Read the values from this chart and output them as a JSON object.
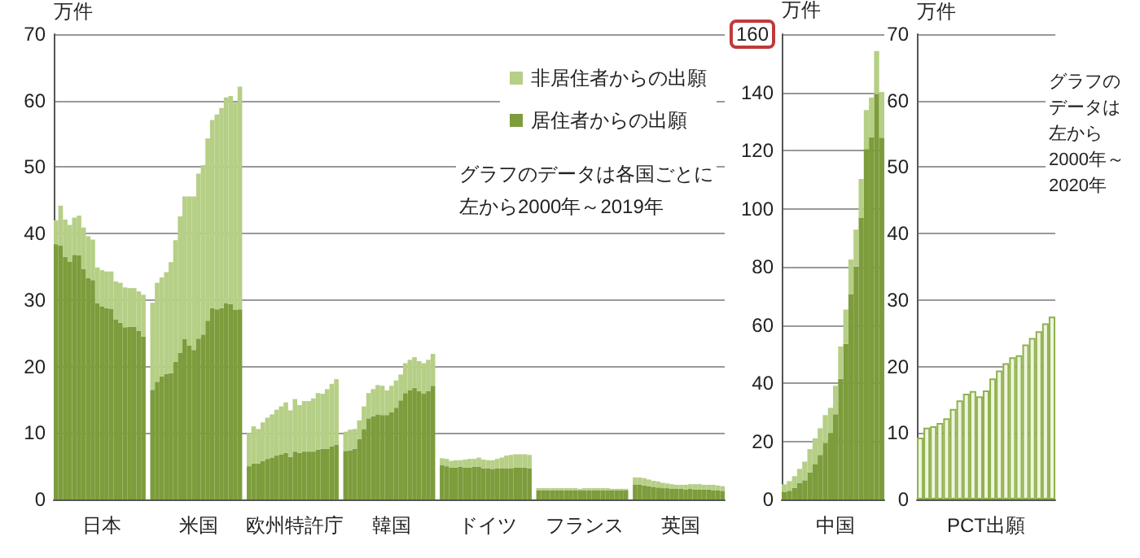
{
  "chart_data": [
    {
      "type": "bar",
      "stacked": true,
      "ylabel": "万件",
      "grid": "y",
      "legend": "top right",
      "ylim": [
        0,
        70
      ],
      "yticks": [
        0,
        10,
        20,
        30,
        40,
        50,
        60,
        70
      ],
      "annotations": [
        "グラフのデータは各国ごとに",
        "左から2000年～2019年"
      ],
      "categories": [
        null,
        null,
        null,
        null,
        null,
        null,
        null,
        null,
        null,
        null,
        "日本",
        null,
        null,
        null,
        null,
        null,
        null,
        null,
        null,
        null,
        null,
        null,
        null,
        null,
        null,
        null,
        null,
        null,
        null,
        null,
        null,
        "米国",
        null,
        null,
        null,
        null,
        null,
        null,
        null,
        null,
        null,
        null,
        null,
        null,
        null,
        null,
        null,
        null,
        null,
        null,
        null,
        null,
        "欧州特許庁",
        null,
        null,
        null,
        null,
        null,
        null,
        null,
        null,
        null,
        null,
        null,
        null,
        null,
        null,
        null,
        null,
        null,
        null,
        null,
        null,
        "韓国",
        null,
        null,
        null,
        null,
        null,
        null,
        null,
        null,
        null,
        null,
        null,
        null,
        null,
        null,
        null,
        null,
        null,
        null,
        null,
        null,
        "ドイツ",
        null,
        null,
        null,
        null,
        null,
        null,
        null,
        null,
        null,
        null,
        null,
        null,
        null,
        null,
        null,
        null,
        null,
        null,
        null,
        null,
        "フランス",
        null,
        null,
        null,
        null,
        null,
        null,
        null,
        null,
        null,
        null,
        null,
        null,
        null,
        null,
        null,
        null,
        null,
        null,
        null,
        null,
        "英国",
        null,
        null,
        null,
        null,
        null,
        null,
        null,
        null,
        null
      ],
      "series": [
        {
          "name": "居住者からの出願",
          "color": "#7d9c3c",
          "values": [
            38.4,
            38.2,
            36.5,
            35.8,
            36.8,
            36.7,
            34.7,
            33.3,
            33.0,
            29.5,
            29.0,
            28.8,
            28.7,
            27.1,
            26.6,
            25.9,
            26.0,
            26.0,
            25.4,
            24.5,
            null,
            16.5,
            17.7,
            18.5,
            18.9,
            19.0,
            20.7,
            22.1,
            24.1,
            23.2,
            22.5,
            24.2,
            24.8,
            26.9,
            28.8,
            28.6,
            28.8,
            29.5,
            29.4,
            28.5,
            28.6,
            null,
            5.0,
            5.4,
            5.4,
            5.8,
            6.1,
            6.3,
            6.6,
            6.8,
            7.0,
            6.4,
            7.2,
            7.0,
            7.2,
            7.2,
            7.2,
            7.5,
            7.6,
            7.6,
            8.0,
            8.2,
            null,
            7.3,
            7.4,
            7.6,
            9.1,
            10.6,
            12.2,
            12.5,
            12.8,
            12.7,
            12.7,
            13.1,
            13.8,
            14.9,
            16.0,
            16.4,
            16.8,
            16.3,
            15.9,
            16.3,
            17.1,
            null,
            5.2,
            5.0,
            4.8,
            4.8,
            4.9,
            4.8,
            4.8,
            4.9,
            4.9,
            4.7,
            4.7,
            4.6,
            4.7,
            4.7,
            4.7,
            4.7,
            4.8,
            4.8,
            4.8,
            4.7,
            null,
            1.4,
            1.4,
            1.4,
            1.4,
            1.4,
            1.4,
            1.4,
            1.4,
            1.4,
            1.4,
            1.4,
            1.4,
            1.4,
            1.4,
            1.4,
            1.4,
            1.4,
            1.4,
            1.4,
            1.4,
            null,
            2.2,
            2.2,
            2.1,
            2.0,
            1.9,
            1.8,
            1.7,
            1.7,
            1.6,
            1.6,
            1.6,
            1.5,
            1.6,
            1.5,
            1.5,
            1.5,
            1.5,
            1.4,
            1.4,
            1.3
          ]
        },
        {
          "name": "非居住者からの出願",
          "color": "#b6cf86",
          "values": [
            3.6,
            6.0,
            5.6,
            5.5,
            5.6,
            6.0,
            6.2,
            6.3,
            6.1,
            5.4,
            5.5,
            5.5,
            5.6,
            5.7,
            6.0,
            6.0,
            5.8,
            5.8,
            5.9,
            6.3,
            null,
            13.1,
            14.9,
            14.9,
            15.3,
            16.7,
            18.3,
            20.5,
            21.5,
            22.4,
            23.1,
            24.8,
            25.5,
            27.4,
            28.3,
            29.3,
            30.1,
            31.0,
            31.3,
            31.2,
            33.5,
            null,
            5.0,
            5.6,
            5.2,
            5.8,
            6.2,
            6.5,
            6.9,
            7.2,
            7.6,
            7.0,
            7.9,
            7.2,
            7.6,
            7.6,
            8.0,
            8.5,
            8.3,
            9.0,
            9.4,
            9.9,
            null,
            2.9,
            3.1,
            3.0,
            2.8,
            3.4,
            3.8,
            4.1,
            4.4,
            4.4,
            3.7,
            4.0,
            4.1,
            3.9,
            4.5,
            4.6,
            4.6,
            4.5,
            4.6,
            4.7,
            4.8,
            null,
            1.0,
            1.1,
            1.0,
            1.1,
            1.0,
            1.2,
            1.3,
            1.2,
            1.4,
            1.3,
            1.2,
            1.3,
            1.4,
            1.6,
            1.9,
            2.0,
            2.0,
            2.0,
            2.0,
            2.0,
            null,
            0.3,
            0.3,
            0.3,
            0.3,
            0.3,
            0.3,
            0.3,
            0.3,
            0.3,
            0.2,
            0.3,
            0.3,
            0.3,
            0.3,
            0.3,
            0.3,
            0.2,
            0.2,
            0.2,
            0.2,
            null,
            1.1,
            1.1,
            1.1,
            1.0,
            0.9,
            0.9,
            0.8,
            0.7,
            0.7,
            0.6,
            0.6,
            0.7,
            0.7,
            0.8,
            0.8,
            0.7,
            0.7,
            0.8,
            0.7,
            0.7
          ]
        }
      ]
    },
    {
      "type": "bar",
      "stacked": true,
      "ylabel": "万件",
      "grid": "y",
      "ylim": [
        0,
        160
      ],
      "yticks": [
        0,
        20,
        40,
        60,
        80,
        100,
        120,
        140,
        160
      ],
      "categories": [
        null,
        null,
        null,
        null,
        null,
        null,
        null,
        null,
        null,
        null,
        "中国",
        null,
        null,
        null,
        null,
        null,
        null,
        null,
        null,
        null
      ],
      "series": [
        {
          "color": "#7d9c3c",
          "values": [
            2.6,
            3.0,
            4.0,
            5.7,
            6.6,
            9.3,
            12.2,
            15.3,
            19.5,
            22.9,
            29.3,
            41.5,
            53.5,
            70.5,
            80.1,
            96.9,
            120.5,
            124.5,
            139.4,
            124.4
          ]
        },
        {
          "color": "#b6cf86",
          "values": [
            2.6,
            3.3,
            4.0,
            4.8,
            6.4,
            8.0,
            8.8,
            9.2,
            9.5,
            8.6,
            9.8,
            11.1,
            11.8,
            12.0,
            12.7,
            13.3,
            13.4,
            13.7,
            14.8,
            15.7
          ]
        }
      ]
    },
    {
      "type": "bar",
      "ylabel": "万件",
      "grid": "y",
      "ylim": [
        0,
        70
      ],
      "yticks": [
        0,
        10,
        20,
        30,
        40,
        50,
        60,
        70
      ],
      "annotations": [
        "グラフの",
        "データは",
        "左から",
        "2000年～",
        "2020年"
      ],
      "categories": [
        null,
        null,
        null,
        null,
        null,
        null,
        null,
        null,
        null,
        null,
        "PCT出願",
        null,
        null,
        null,
        null,
        null,
        null,
        null,
        null,
        null,
        null
      ],
      "series": [
        {
          "color": "#eef5dc",
          "values": [
            9.3,
            10.8,
            11.0,
            11.5,
            12.2,
            13.6,
            14.9,
            15.9,
            16.3,
            15.5,
            16.4,
            18.2,
            19.4,
            20.5,
            21.4,
            21.7,
            23.3,
            24.3,
            25.3,
            26.5,
            27.5
          ]
        }
      ]
    }
  ]
}
